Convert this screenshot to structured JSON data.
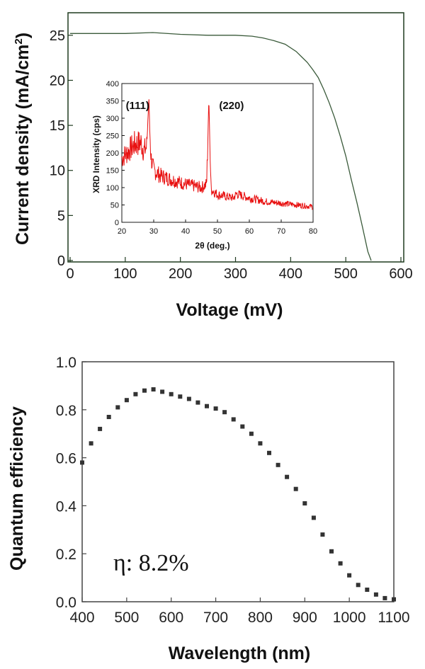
{
  "chart_data": [
    {
      "type": "line",
      "xlabel": "Voltage (mV)",
      "ylabel": "Current density (mA/cm",
      "ylabel_sup": "2",
      "ylabel_close": ")",
      "xlim": [
        0,
        600
      ],
      "ylim": [
        0,
        27.5
      ],
      "x_ticks": [
        "0",
        "100",
        "200",
        "300",
        "400",
        "500",
        "600"
      ],
      "y_ticks": [
        "0",
        "5",
        "10",
        "15",
        "20",
        "25"
      ],
      "series": [
        {
          "color": "#3a5a3a",
          "x": [
            0,
            50,
            100,
            150,
            200,
            250,
            300,
            330,
            350,
            370,
            390,
            410,
            420,
            430,
            440,
            450,
            460,
            470,
            480,
            490,
            500,
            510,
            520,
            530,
            540,
            546
          ],
          "y": [
            25.2,
            25.2,
            25.2,
            25.3,
            25.1,
            25.0,
            25.0,
            24.9,
            24.7,
            24.4,
            24.0,
            23.2,
            22.6,
            22.0,
            21.2,
            20.3,
            19.0,
            17.5,
            15.8,
            13.8,
            11.6,
            9.0,
            6.5,
            3.8,
            1.0,
            0
          ]
        }
      ]
    },
    {
      "type": "line",
      "inset": true,
      "xlabel": "2θ (deg.)",
      "ylabel": "XRD Intensity (cps)",
      "xlim": [
        20,
        80
      ],
      "ylim": [
        0,
        400
      ],
      "x_ticks": [
        "20",
        "30",
        "40",
        "50",
        "60",
        "70",
        "80"
      ],
      "y_ticks": [
        "0",
        "50",
        "100",
        "150",
        "200",
        "250",
        "300",
        "350",
        "400"
      ],
      "annotations": [
        {
          "text": "(111)",
          "x": 28.5
        },
        {
          "text": "(220)",
          "x": 47.3
        }
      ],
      "series": [
        {
          "color": "#e81010",
          "x": [
            20,
            22,
            24,
            26,
            27,
            27.8,
            28.2,
            28.5,
            28.8,
            29.2,
            30,
            32,
            35,
            40,
            45,
            46.6,
            47.0,
            47.3,
            47.6,
            48.0,
            50,
            55,
            56,
            60,
            65,
            70,
            75,
            80
          ],
          "y": [
            185,
            205,
            225,
            230,
            205,
            220,
            300,
            362,
            250,
            185,
            150,
            135,
            125,
            110,
            100,
            110,
            240,
            362,
            230,
            95,
            80,
            70,
            82,
            70,
            60,
            55,
            50,
            45
          ]
        }
      ]
    },
    {
      "type": "scatter",
      "xlabel": "Wavelength (nm)",
      "ylabel": "Quantum efficiency",
      "annotation": "η: 8.2%",
      "xlim": [
        400,
        1100
      ],
      "ylim": [
        0,
        1.0
      ],
      "x_ticks": [
        "400",
        "500",
        "600",
        "700",
        "800",
        "900",
        "1000",
        "1100"
      ],
      "y_ticks": [
        "0.0",
        "0.2",
        "0.4",
        "0.6",
        "0.8",
        "1.0"
      ],
      "series": [
        {
          "color": "#333333",
          "x": [
            400,
            420,
            440,
            460,
            480,
            500,
            520,
            540,
            560,
            580,
            600,
            620,
            640,
            660,
            680,
            700,
            720,
            740,
            760,
            780,
            800,
            820,
            840,
            860,
            880,
            900,
            920,
            940,
            960,
            980,
            1000,
            1020,
            1040,
            1060,
            1080,
            1100
          ],
          "y": [
            0.58,
            0.66,
            0.72,
            0.77,
            0.81,
            0.84,
            0.865,
            0.88,
            0.885,
            0.875,
            0.865,
            0.855,
            0.845,
            0.83,
            0.815,
            0.805,
            0.79,
            0.76,
            0.73,
            0.7,
            0.66,
            0.62,
            0.57,
            0.52,
            0.47,
            0.41,
            0.35,
            0.28,
            0.21,
            0.16,
            0.11,
            0.07,
            0.05,
            0.03,
            0.015,
            0.01
          ]
        }
      ]
    }
  ]
}
